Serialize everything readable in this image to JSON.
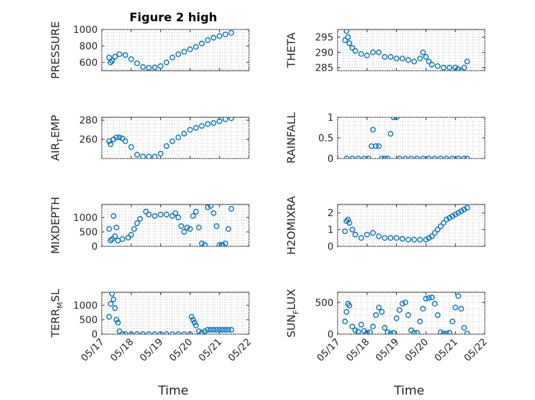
{
  "figure": {
    "title": "Figure 2 high",
    "xlabel": "Time"
  },
  "colors": {
    "marker": "#0072BD",
    "axis": "#262626",
    "grid": "#bdbdbd"
  },
  "chart_data": [
    {
      "id": "pressure",
      "type": "scatter",
      "title": "Figure 2 high",
      "ylabel": "PRESSURE",
      "ylim": [
        500,
        1000
      ],
      "yticks": [
        600,
        800,
        1000
      ],
      "xlim": [
        "05/17",
        "05/22"
      ],
      "xticks": [
        "05/17",
        "05/18",
        "05/19",
        "05/20",
        "05/21",
        "05/22"
      ],
      "grid": true,
      "x": [
        17.25,
        17.3,
        17.35,
        17.45,
        17.6,
        17.8,
        18.0,
        18.2,
        18.4,
        18.6,
        18.8,
        19.0,
        19.2,
        19.4,
        19.6,
        19.8,
        20.0,
        20.2,
        20.4,
        20.6,
        20.8,
        21.0,
        21.2,
        21.4
      ],
      "y": [
        660,
        600,
        620,
        670,
        700,
        690,
        640,
        590,
        545,
        535,
        540,
        555,
        600,
        660,
        700,
        730,
        760,
        790,
        830,
        870,
        900,
        920,
        940,
        960
      ]
    },
    {
      "id": "theta",
      "type": "scatter",
      "ylabel": "THETA",
      "ylim": [
        284,
        297.5
      ],
      "yticks": [
        285,
        290,
        295
      ],
      "xlim": [
        "05/17",
        "05/22"
      ],
      "xticks": [
        "05/17",
        "05/18",
        "05/19",
        "05/20",
        "05/21",
        "05/22"
      ],
      "grid": true,
      "x": [
        17.25,
        17.3,
        17.35,
        17.4,
        17.5,
        17.6,
        17.8,
        18.0,
        18.2,
        18.4,
        18.6,
        18.8,
        19.0,
        19.2,
        19.4,
        19.6,
        19.8,
        19.9,
        20.0,
        20.1,
        20.2,
        20.4,
        20.6,
        20.8,
        21.0,
        21.1,
        21.2,
        21.3,
        21.4
      ],
      "y": [
        294,
        297,
        295,
        293,
        291.5,
        290.5,
        289.5,
        289,
        290,
        290,
        288.5,
        288.5,
        288,
        288,
        287.5,
        287,
        288,
        290,
        288.5,
        287,
        286,
        285.5,
        285,
        285,
        285,
        284.5,
        284,
        285,
        287
      ]
    },
    {
      "id": "air_temp",
      "type": "scatter",
      "ylabel": "AIR_TEMP",
      "ylim": [
        240,
        283
      ],
      "yticks": [
        260,
        280
      ],
      "xlim": [
        "05/17",
        "05/22"
      ],
      "xticks": [
        "05/17",
        "05/18",
        "05/19",
        "05/20",
        "05/21",
        "05/22"
      ],
      "grid": true,
      "x": [
        17.25,
        17.3,
        17.4,
        17.5,
        17.6,
        17.7,
        17.8,
        18.0,
        18.2,
        18.4,
        18.6,
        18.8,
        19.0,
        19.2,
        19.4,
        19.6,
        19.8,
        20.0,
        20.2,
        20.4,
        20.6,
        20.8,
        21.0,
        21.2,
        21.4
      ],
      "y": [
        258,
        255,
        260,
        262,
        262,
        261,
        258,
        252,
        244,
        242,
        242,
        242,
        245,
        253,
        258,
        262,
        266,
        270,
        272,
        274,
        276,
        277,
        279,
        281,
        282
      ]
    },
    {
      "id": "rainfall",
      "type": "scatter",
      "ylabel": "RAINFALL",
      "ylim": [
        0,
        1
      ],
      "yticks": [
        0,
        0.5,
        1
      ],
      "xlim": [
        "05/17",
        "05/22"
      ],
      "xticks": [
        "05/17",
        "05/18",
        "05/19",
        "05/20",
        "05/21",
        "05/22"
      ],
      "grid": true,
      "x": [
        17.3,
        17.5,
        17.7,
        17.9,
        18.05,
        18.15,
        18.2,
        18.3,
        18.4,
        18.5,
        18.6,
        18.7,
        18.8,
        18.9,
        19.0,
        19.1,
        19.3,
        19.5,
        19.7,
        19.9,
        20.1,
        20.3,
        20.5,
        20.7,
        20.9,
        21.1,
        21.3,
        21.4
      ],
      "y": [
        0,
        0,
        0,
        0,
        0,
        0.3,
        0.7,
        0.3,
        0.3,
        0,
        0,
        0,
        0.6,
        1,
        1,
        0,
        0,
        0,
        0,
        0,
        0,
        0,
        0,
        0,
        0,
        0,
        0,
        0
      ]
    },
    {
      "id": "mixdepth",
      "type": "scatter",
      "ylabel": "MIXDEPTH",
      "ylim": [
        0,
        1450
      ],
      "yticks": [
        0,
        500,
        1000
      ],
      "xlim": [
        "05/17",
        "05/22"
      ],
      "xticks": [
        "05/17",
        "05/18",
        "05/19",
        "05/20",
        "05/21",
        "05/22"
      ],
      "grid": true,
      "x": [
        17.25,
        17.3,
        17.35,
        17.4,
        17.45,
        17.5,
        17.55,
        17.7,
        17.9,
        18.0,
        18.1,
        18.2,
        18.3,
        18.5,
        18.6,
        18.8,
        19.0,
        19.2,
        19.4,
        19.5,
        19.6,
        19.7,
        19.8,
        19.9,
        20.0,
        20.1,
        20.2,
        20.3,
        20.4,
        20.5,
        20.6,
        20.7,
        20.8,
        20.9,
        21.0,
        21.1,
        21.2,
        21.3,
        21.4
      ],
      "y": [
        600,
        200,
        250,
        1050,
        350,
        650,
        200,
        250,
        300,
        400,
        600,
        800,
        950,
        1200,
        1100,
        1050,
        1100,
        1100,
        1050,
        1150,
        1000,
        700,
        500,
        650,
        600,
        1050,
        1200,
        650,
        100,
        50,
        1350,
        1400,
        1150,
        700,
        50,
        50,
        100,
        600,
        1300
      ]
    },
    {
      "id": "h2omixra",
      "type": "scatter",
      "ylabel": "H2OMIXRA",
      "ylim": [
        0,
        2.5
      ],
      "yticks": [
        0,
        1,
        2
      ],
      "xlim": [
        "05/17",
        "05/22"
      ],
      "xticks": [
        "05/17",
        "05/18",
        "05/19",
        "05/20",
        "05/21",
        "05/22"
      ],
      "grid": true,
      "x": [
        17.25,
        17.3,
        17.35,
        17.4,
        17.5,
        17.6,
        17.8,
        18.0,
        18.2,
        18.4,
        18.6,
        18.8,
        19.0,
        19.2,
        19.4,
        19.6,
        19.8,
        20.0,
        20.1,
        20.2,
        20.3,
        20.4,
        20.5,
        20.6,
        20.7,
        20.8,
        20.9,
        21.0,
        21.1,
        21.2,
        21.3,
        21.4
      ],
      "y": [
        0.9,
        1.5,
        1.6,
        1.4,
        1.0,
        0.7,
        0.5,
        0.7,
        0.8,
        0.6,
        0.5,
        0.5,
        0.5,
        0.45,
        0.4,
        0.4,
        0.4,
        0.4,
        0.5,
        0.6,
        0.8,
        1.0,
        1.2,
        1.4,
        1.6,
        1.7,
        1.8,
        1.9,
        2.0,
        2.1,
        2.2,
        2.3
      ]
    },
    {
      "id": "terr_msl",
      "type": "scatter",
      "ylabel": "TERR_MSL",
      "ylim": [
        0,
        1450
      ],
      "yticks": [
        0,
        500,
        1000
      ],
      "xlim": [
        "05/17",
        "05/22"
      ],
      "xticks": [
        "05/17",
        "05/18",
        "05/19",
        "05/20",
        "05/21",
        "05/22"
      ],
      "grid": true,
      "x": [
        17.25,
        17.3,
        17.35,
        17.4,
        17.45,
        17.5,
        17.55,
        17.6,
        17.7,
        17.8,
        18.0,
        18.2,
        18.4,
        18.6,
        18.8,
        19.0,
        19.2,
        19.4,
        19.6,
        19.8,
        20.0,
        20.05,
        20.1,
        20.15,
        20.2,
        20.3,
        20.4,
        20.5,
        20.6,
        20.7,
        20.8,
        20.9,
        21.0,
        21.1,
        21.2,
        21.3,
        21.4
      ],
      "y": [
        600,
        1050,
        1400,
        1200,
        900,
        500,
        400,
        100,
        0,
        0,
        0,
        0,
        0,
        0,
        0,
        0,
        0,
        0,
        0,
        0,
        0,
        600,
        500,
        400,
        300,
        100,
        50,
        100,
        150,
        150,
        150,
        150,
        150,
        150,
        150,
        150,
        150
      ]
    },
    {
      "id": "sun_flux",
      "type": "scatter",
      "ylabel": "SUN_FLUX",
      "ylim": [
        0,
        660
      ],
      "yticks": [
        0,
        500
      ],
      "xlim": [
        "05/17",
        "05/22"
      ],
      "xticks": [
        "05/17",
        "05/18",
        "05/19",
        "05/20",
        "05/21",
        "05/22"
      ],
      "grid": true,
      "x": [
        17.25,
        17.3,
        17.35,
        17.4,
        17.5,
        17.6,
        17.7,
        17.8,
        17.9,
        18.0,
        18.1,
        18.2,
        18.3,
        18.4,
        18.5,
        18.6,
        18.7,
        18.8,
        18.9,
        19.0,
        19.1,
        19.2,
        19.3,
        19.4,
        19.5,
        19.6,
        19.7,
        19.8,
        19.9,
        20.0,
        20.1,
        20.2,
        20.3,
        20.4,
        20.5,
        20.6,
        20.7,
        20.8,
        20.9,
        21.0,
        21.1,
        21.2,
        21.3,
        21.4
      ],
      "y": [
        200,
        350,
        480,
        450,
        120,
        60,
        40,
        150,
        50,
        20,
        30,
        120,
        300,
        420,
        350,
        100,
        30,
        10,
        20,
        250,
        380,
        480,
        500,
        300,
        60,
        20,
        20,
        200,
        400,
        560,
        570,
        580,
        480,
        300,
        30,
        10,
        10,
        20,
        200,
        420,
        600,
        400,
        100,
        10
      ]
    }
  ]
}
